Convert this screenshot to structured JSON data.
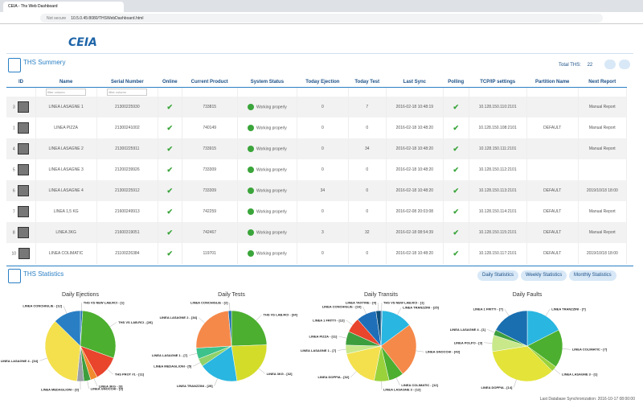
{
  "browser": {
    "tab_title": "CEIA - Ths Web Dashboard",
    "security": "Not secure",
    "url": "10.5.0.45:8080/THSWebDashboard.html"
  },
  "header": {
    "logo": "CEIA"
  },
  "summary": {
    "title": "THS Summery",
    "total_label": "Total THS:",
    "total": 22,
    "columns": [
      "ID",
      "Name",
      "Serial Number",
      "Online",
      "Current Product",
      "System Status",
      "Today Ejection",
      "Today Test",
      "Last Sync",
      "Polling",
      "TCP/IP settings",
      "Partition Name",
      "Next Report"
    ],
    "filter_placeholder": "filter column",
    "rows": [
      {
        "id": 3,
        "name": "LINEA LASAGNE 1",
        "serial": "21300225930",
        "online": true,
        "product": "733815",
        "status": "Working properly",
        "ejection": 0,
        "test": 7,
        "sync": "2016-02-18 10:48:19",
        "polling": true,
        "tcp": "10.128.150.110:2101",
        "report": "Manual Report"
      },
      {
        "id": 1,
        "name": "LINEA PIZZA",
        "serial": "21300241002",
        "online": true,
        "product": "740149",
        "status": "Working properly",
        "ejection": 0,
        "test": 0,
        "sync": "2016-02-18 10:48:20",
        "polling": true,
        "tcp": "10.128.150.108:2101",
        "partition": "DEFAULT",
        "report": "Manual Report"
      },
      {
        "id": 4,
        "name": "LINEA LASAGNE 2",
        "serial": "21300225911",
        "online": true,
        "product": "733915",
        "status": "Working properly",
        "ejection": 0,
        "test": 34,
        "sync": "2016-02-18 10:48:20",
        "polling": true,
        "tcp": "10.128.150.111:2101",
        "report": "Manual Report"
      },
      {
        "id": 5,
        "name": "LINEA LASAGNE 3",
        "serial": "21200239926",
        "online": true,
        "product": "733309",
        "status": "Working properly",
        "ejection": 0,
        "test": 0,
        "sync": "2016-02-18 10:48:20",
        "polling": true,
        "tcp": "10.128.150.112:2101"
      },
      {
        "id": 6,
        "name": "LINEA LASAGNE 4",
        "serial": "21300225912",
        "online": true,
        "product": "733309",
        "status": "Working properly",
        "ejection": 34,
        "test": 0,
        "sync": "2016-02-18 10:48:20",
        "polling": true,
        "tcp": "10.128.150.113:2101",
        "partition": "DEFAULT",
        "report": "2019/10/18 18:00"
      },
      {
        "id": 7,
        "name": "LINEA 1,5 KG",
        "serial": "21600249913",
        "online": true,
        "product": "742259",
        "status": "Working properly",
        "ejection": 0,
        "test": 0,
        "sync": "2016-02-08 20:03:08",
        "polling": true,
        "tcp": "10.128.150.114:2101",
        "partition": "DEFAULT",
        "report": "Manual Report"
      },
      {
        "id": 8,
        "name": "LINEA 3KG",
        "serial": "21600319051",
        "online": true,
        "product": "742467",
        "status": "Working properly",
        "ejection": 3,
        "test": 32,
        "sync": "2016-02-18 08:54:39",
        "polling": true,
        "tcp": "10.128.150.115:2101",
        "partition": "DEFAULT",
        "report": "Manual Report"
      },
      {
        "id": 10,
        "name": "LINEA COLIMATIC",
        "serial": "21100226384",
        "online": true,
        "product": "119701",
        "status": "Working properly",
        "ejection": 0,
        "test": 0,
        "sync": "2016-02-18 10:48:20",
        "polling": true,
        "tcp": "10.128.150.117:2101",
        "partition": "DEFAULT",
        "report": "2019/10/18 18:00"
      }
    ]
  },
  "statistics": {
    "title": "THS Statistics",
    "buttons": [
      "Daily Statistics",
      "Weekly Statistics",
      "Monthly Statistics"
    ],
    "charts": [
      {
        "type": "pie",
        "title": "Daily Ejections",
        "categories": [
          "THS VS NEW LAB.RCI - [1]",
          "THS VS LAB.RCI - [28]",
          "THS PROT #1 - [11]",
          "LINEA 3KG - [3]",
          "LINEA GNOCCHI - [3]",
          "LINEA MEDAGLIONI - [3]",
          "LINEA LASAGNE 4 - [34]",
          "LINEA CONCHIGLIE - [12]"
        ],
        "values": [
          1,
          28,
          11,
          3,
          3,
          3,
          34,
          12
        ],
        "colors": [
          "#1a6fb0",
          "#4caf2f",
          "#e8452c",
          "#f08a2c",
          "#3d9e3d",
          "#9aa0a6",
          "#f4e04d",
          "#2a7fc4"
        ]
      },
      {
        "type": "pie",
        "title": "Daily Tests",
        "categories": [
          "THS VS LAB.RCI - [34]",
          "LINEA 3KG - [32]",
          "LINEA TRANZZINI - [25]",
          "LINEA MEDAGLIONI - [5]",
          "LINEA LASAGNE 1 - [7]",
          "LINEA LASAGNE 2 - [34]",
          "LINEA CONCHIGLIE - [2]"
        ],
        "values": [
          34,
          32,
          25,
          5,
          7,
          34,
          2
        ],
        "colors": [
          "#4caf2f",
          "#d4dc2a",
          "#29b6e0",
          "#8fd16a",
          "#3cc28a",
          "#f5894a",
          "#1a6fb0"
        ]
      },
      {
        "type": "pie",
        "title": "Daily Transits",
        "categories": [
          "THS VS NEW LAB.RCI - [1]",
          "LINEA TRANZZINI - [25]",
          "LINEA GNOCCHI - [43]",
          "LINEA COLIMATIC - [12]",
          "LINEA LASAGNE 3 - [12]",
          "LINEA DOPPIA - [32]",
          "LINEA LASAGNE 1 - [7]",
          "LINEA PIZZA - [11]",
          "LINEA 1 FRITTI - [12]",
          "LINEA CONCHIGLIE - [16]",
          "LINEA TAXTINE - [4]"
        ],
        "values": [
          1,
          25,
          43,
          12,
          12,
          32,
          7,
          11,
          12,
          16,
          4
        ],
        "colors": [
          "#1a6fb0",
          "#29b6e0",
          "#f5894a",
          "#4caf2f",
          "#9ad23c",
          "#f4e04d",
          "#c8e88a",
          "#3d9e3d",
          "#e8452c",
          "#1f6fb8",
          "#0d4f7a"
        ]
      },
      {
        "type": "pie",
        "title": "Daily Faults",
        "categories": [
          "LINEA TRANZZINI - [7]",
          "LINEA COLIMATIC - [7]",
          "LINEA LASAGNE 3 - [1]",
          "LINEA DOPPIA - [14]",
          "LINEA POLPO - [3]",
          "LINEA LASAGNE 4 - [1]",
          "LINEA 1 FRITTI - [7]"
        ],
        "values": [
          7,
          7,
          1,
          14,
          3,
          1,
          7
        ],
        "colors": [
          "#29b6e0",
          "#4caf2f",
          "#9ad23c",
          "#e3e33a",
          "#c8e88a",
          "#3d9e3d",
          "#1a6fb0"
        ]
      }
    ]
  },
  "footer": {
    "sync": "Last Database Synchronization: 2016-10-17 08:00:00"
  }
}
